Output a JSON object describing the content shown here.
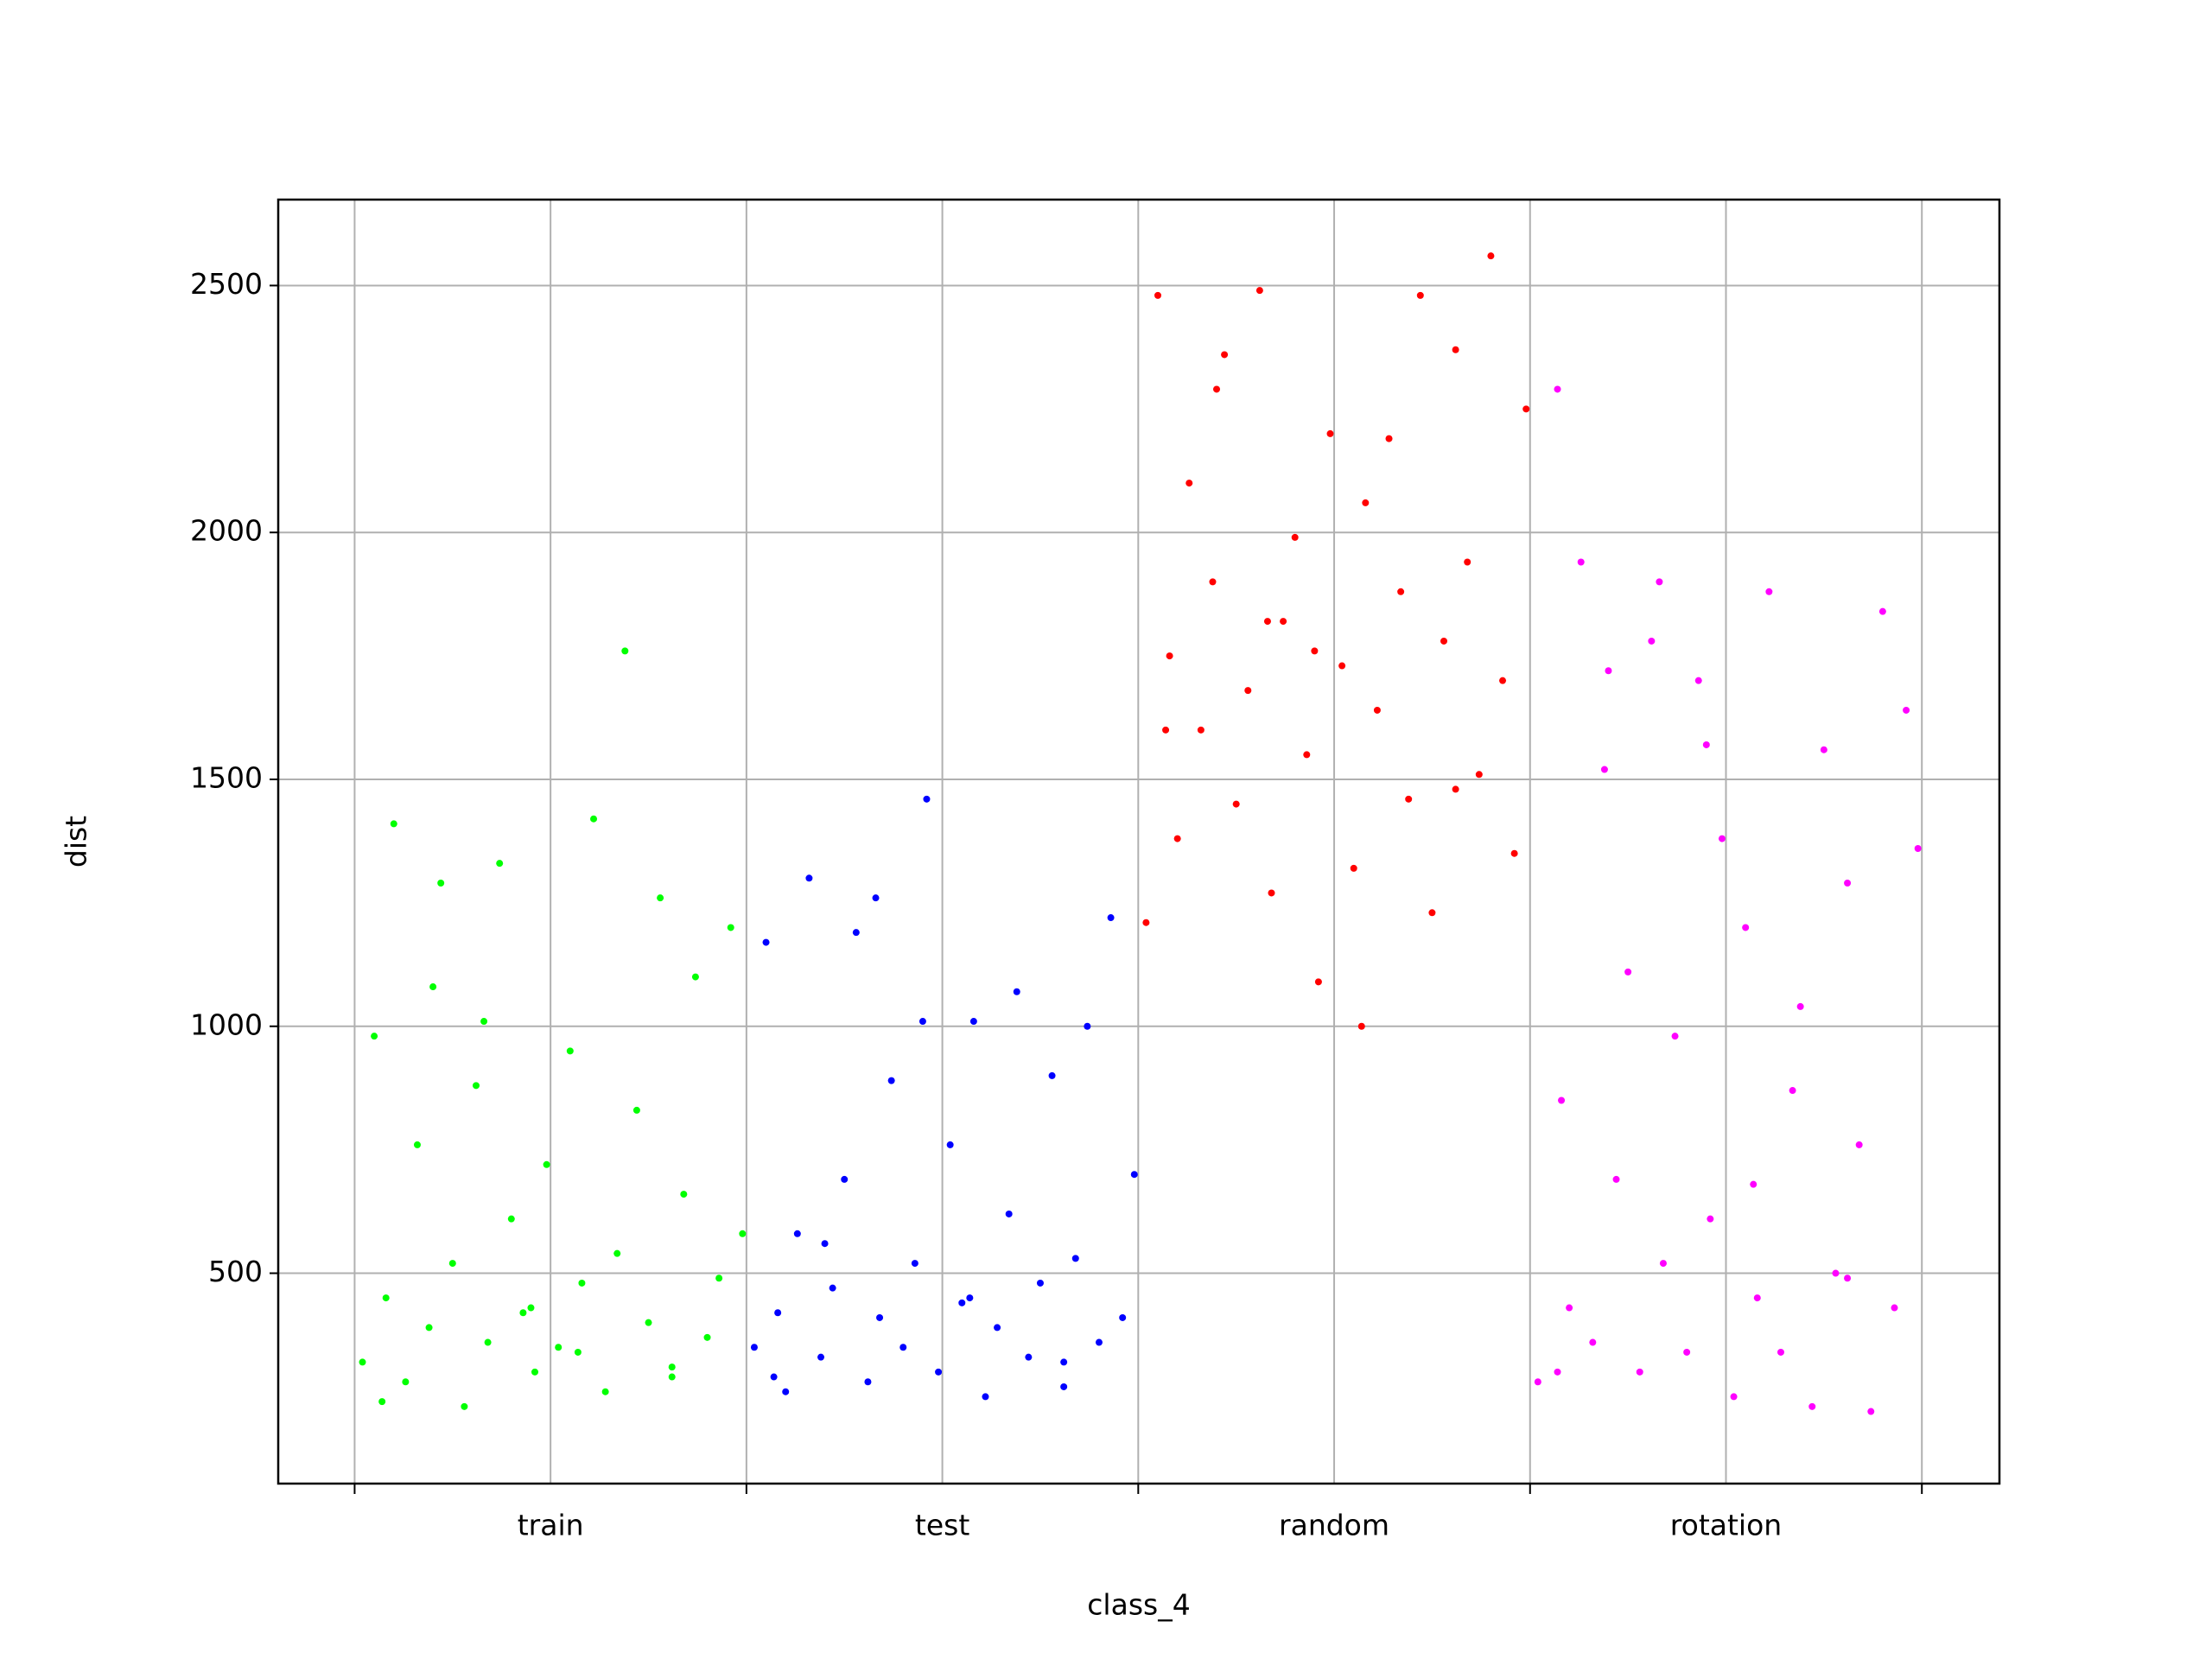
{
  "chart_data": {
    "type": "scatter",
    "xlabel": "class_4",
    "ylabel": "dist",
    "categories": [
      "train",
      "test",
      "random",
      "rotation"
    ],
    "xlim": [
      -0.195,
      4.198
    ],
    "xticks": [
      0,
      1,
      2,
      3,
      4
    ],
    "ylim": [
      74,
      2674
    ],
    "yticks": [
      500,
      1000,
      1500,
      2000,
      2500
    ],
    "grid": true,
    "series": [
      {
        "color": "#00ff00",
        "x": [
          0.02,
          0.05,
          0.08,
          0.1,
          0.13,
          0.16,
          0.19,
          0.22,
          0.25,
          0.28,
          0.31,
          0.34,
          0.37,
          0.4,
          0.43,
          0.46,
          0.49,
          0.52,
          0.55,
          0.58,
          0.61,
          0.64,
          0.67,
          0.69,
          0.72,
          0.75,
          0.78,
          0.81,
          0.84,
          0.87,
          0.9,
          0.93,
          0.96,
          0.99,
          0.07,
          0.33,
          0.57,
          0.81,
          0.2,
          0.45
        ],
        "values": [
          320,
          980,
          450,
          1410,
          280,
          760,
          390,
          1290,
          520,
          230,
          880,
          360,
          1330,
          610,
          420,
          300,
          720,
          350,
          950,
          480,
          1420,
          260,
          540,
          1760,
          830,
          400,
          1260,
          310,
          660,
          1100,
          370,
          490,
          1200,
          580,
          240,
          1010,
          340,
          290,
          1080,
          430
        ]
      },
      {
        "color": "#0000ff",
        "x": [
          1.02,
          1.05,
          1.08,
          1.1,
          1.13,
          1.16,
          1.19,
          1.22,
          1.25,
          1.28,
          1.31,
          1.34,
          1.37,
          1.4,
          1.43,
          1.46,
          1.49,
          1.52,
          1.55,
          1.58,
          1.61,
          1.64,
          1.67,
          1.69,
          1.72,
          1.75,
          1.78,
          1.81,
          1.84,
          1.87,
          1.9,
          1.93,
          1.96,
          1.99,
          1.07,
          1.33,
          1.57,
          1.81,
          1.2,
          1.45
        ],
        "values": [
          350,
          1170,
          420,
          260,
          580,
          1300,
          330,
          470,
          690,
          1190,
          280,
          410,
          890,
          350,
          520,
          1460,
          300,
          760,
          440,
          1010,
          250,
          390,
          620,
          1070,
          330,
          480,
          900,
          270,
          530,
          1000,
          360,
          1220,
          410,
          700,
          290,
          1260,
          450,
          320,
          560,
          1010
        ]
      },
      {
        "color": "#ff0000",
        "x": [
          2.02,
          2.05,
          2.08,
          2.1,
          2.13,
          2.16,
          2.19,
          2.22,
          2.25,
          2.28,
          2.31,
          2.34,
          2.37,
          2.4,
          2.43,
          2.46,
          2.49,
          2.52,
          2.55,
          2.58,
          2.61,
          2.64,
          2.67,
          2.69,
          2.72,
          2.75,
          2.78,
          2.81,
          2.84,
          2.87,
          2.9,
          2.93,
          2.96,
          2.99,
          2.07,
          2.33,
          2.57,
          2.81,
          2.2,
          2.45
        ],
        "values": [
          1210,
          2480,
          1750,
          1380,
          2100,
          1600,
          1900,
          2360,
          1450,
          1680,
          2490,
          1270,
          1820,
          1990,
          1550,
          1090,
          2200,
          1730,
          1320,
          2060,
          1640,
          2190,
          1880,
          1460,
          2480,
          1230,
          1780,
          2370,
          1940,
          1510,
          2560,
          1700,
          1350,
          2250,
          1600,
          1820,
          1000,
          1480,
          2290,
          1760
        ]
      },
      {
        "color": "#ff00ff",
        "x": [
          3.02,
          3.07,
          3.08,
          3.1,
          3.13,
          3.16,
          3.19,
          3.22,
          3.25,
          3.28,
          3.31,
          3.34,
          3.37,
          3.4,
          3.43,
          3.46,
          3.49,
          3.52,
          3.55,
          3.58,
          3.61,
          3.64,
          3.67,
          3.69,
          3.72,
          3.75,
          3.78,
          3.81,
          3.84,
          3.87,
          3.9,
          3.93,
          3.96,
          3.99,
          3.07,
          3.33,
          3.57,
          3.81,
          3.2,
          3.45
        ],
        "values": [
          280,
          2290,
          850,
          430,
          1940,
          360,
          1520,
          690,
          1110,
          300,
          1780,
          520,
          980,
          340,
          1700,
          610,
          1380,
          250,
          1200,
          450,
          1880,
          340,
          870,
          1040,
          230,
          1560,
          500,
          1290,
          760,
          220,
          1840,
          430,
          1640,
          1360,
          300,
          1900,
          680,
          490,
          1720,
          1570
        ]
      }
    ]
  }
}
